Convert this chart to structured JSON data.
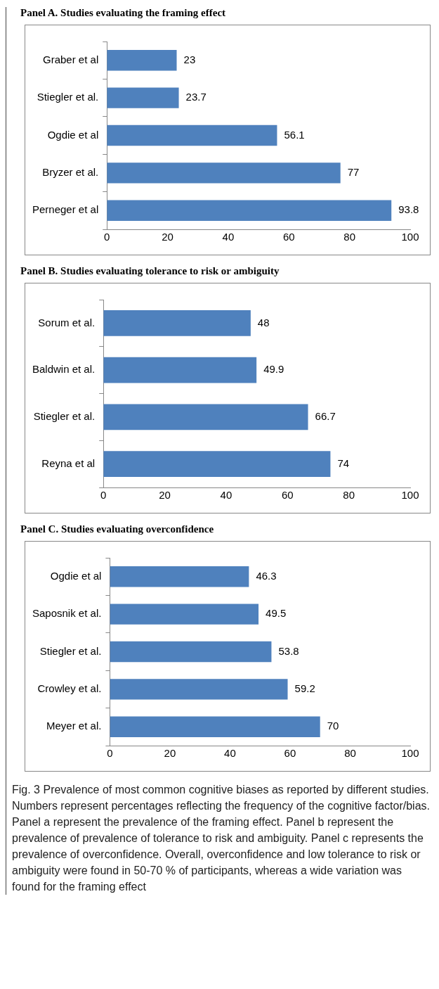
{
  "chart_data": [
    {
      "type": "bar",
      "orientation": "horizontal",
      "title": "Panel A. Studies evaluating the framing effect",
      "categories": [
        "Graber et al",
        "Stiegler et al.",
        "Ogdie et al",
        "Bryzer et al.",
        "Perneger et al"
      ],
      "values": [
        23,
        23.7,
        56.1,
        77,
        93.8
      ],
      "color": "#4f81bd",
      "xlim": [
        0,
        100
      ],
      "xticks": [
        0,
        20,
        40,
        60,
        80,
        100
      ],
      "data_labels": true
    },
    {
      "type": "bar",
      "orientation": "horizontal",
      "title": "Panel B. Studies evaluating tolerance to risk or ambiguity",
      "categories": [
        "Sorum et al.",
        "Baldwin et al.",
        "Stiegler et al.",
        "Reyna et al"
      ],
      "values": [
        48,
        49.9,
        66.7,
        74
      ],
      "color": "#4f81bd",
      "xlim": [
        0,
        100
      ],
      "xticks": [
        0,
        20,
        40,
        60,
        80,
        100
      ],
      "data_labels": true
    },
    {
      "type": "bar",
      "orientation": "horizontal",
      "title": "Panel C. Studies evaluating overconfidence",
      "categories": [
        "Ogdie et al",
        "Saposnik et al.",
        "Stiegler et al.",
        "Crowley et al.",
        "Meyer et al."
      ],
      "values": [
        46.3,
        49.5,
        53.8,
        59.2,
        70
      ],
      "color": "#4f81bd",
      "xlim": [
        0,
        100
      ],
      "xticks": [
        0,
        20,
        40,
        60,
        80,
        100
      ],
      "data_labels": true,
      "annotations": [
        "Fig. 3 Prevalence of most common cognitive biases as reported by different studies. Numbers represent percentages reflecting the frequency of the cognitive factor/bias. Panel a represent the prevalence of the framing effect. Panel b represent the prevalence of prevalence of tolerance to risk and ambiguity. Panel c represents the prevalence of overconfidence. Overall, overconfidence and low tolerance to risk or ambiguity were found in 50-70 % of participants, whereas a wide variation was found for the framing effect"
      ]
    }
  ]
}
